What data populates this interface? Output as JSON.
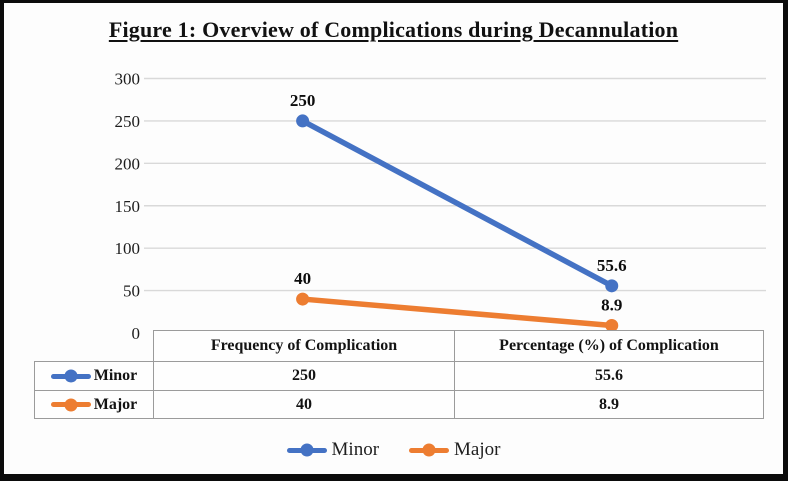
{
  "title": "Figure 1: Overview of Complications during Decannulation",
  "colors": {
    "minor": "#4472C4",
    "major": "#ED7D31",
    "gridline": "#D9D9D9",
    "table_border": "#9B9B9B"
  },
  "chart_data": {
    "type": "line",
    "title": "Figure 1: Overview of Complications during Decannulation",
    "categories": [
      "Frequency of Complication",
      "Percentage (%) of Complication"
    ],
    "series": [
      {
        "name": "Minor",
        "color": "#4472C4",
        "values": [
          250,
          55.6
        ],
        "labels": [
          "250",
          "55.6"
        ]
      },
      {
        "name": "Major",
        "color": "#ED7D31",
        "values": [
          40,
          8.9
        ],
        "labels": [
          "40",
          "8.9"
        ]
      }
    ],
    "xlabel": "",
    "ylabel": "",
    "ylim": [
      0,
      300
    ],
    "yticks": [
      0,
      50,
      100,
      150,
      200,
      250,
      300
    ],
    "grid": true,
    "data_labels": true,
    "legend_position": "bottom"
  },
  "table": {
    "headers": [
      "",
      "Frequency of Complication",
      "Percentage (%) of Complication"
    ],
    "rows": [
      {
        "label": "Minor",
        "frequency": "250",
        "percentage": "55.6"
      },
      {
        "label": "Major",
        "frequency": "40",
        "percentage": "8.9"
      }
    ]
  },
  "legend": {
    "items": [
      {
        "label": "Minor"
      },
      {
        "label": "Major"
      }
    ]
  }
}
